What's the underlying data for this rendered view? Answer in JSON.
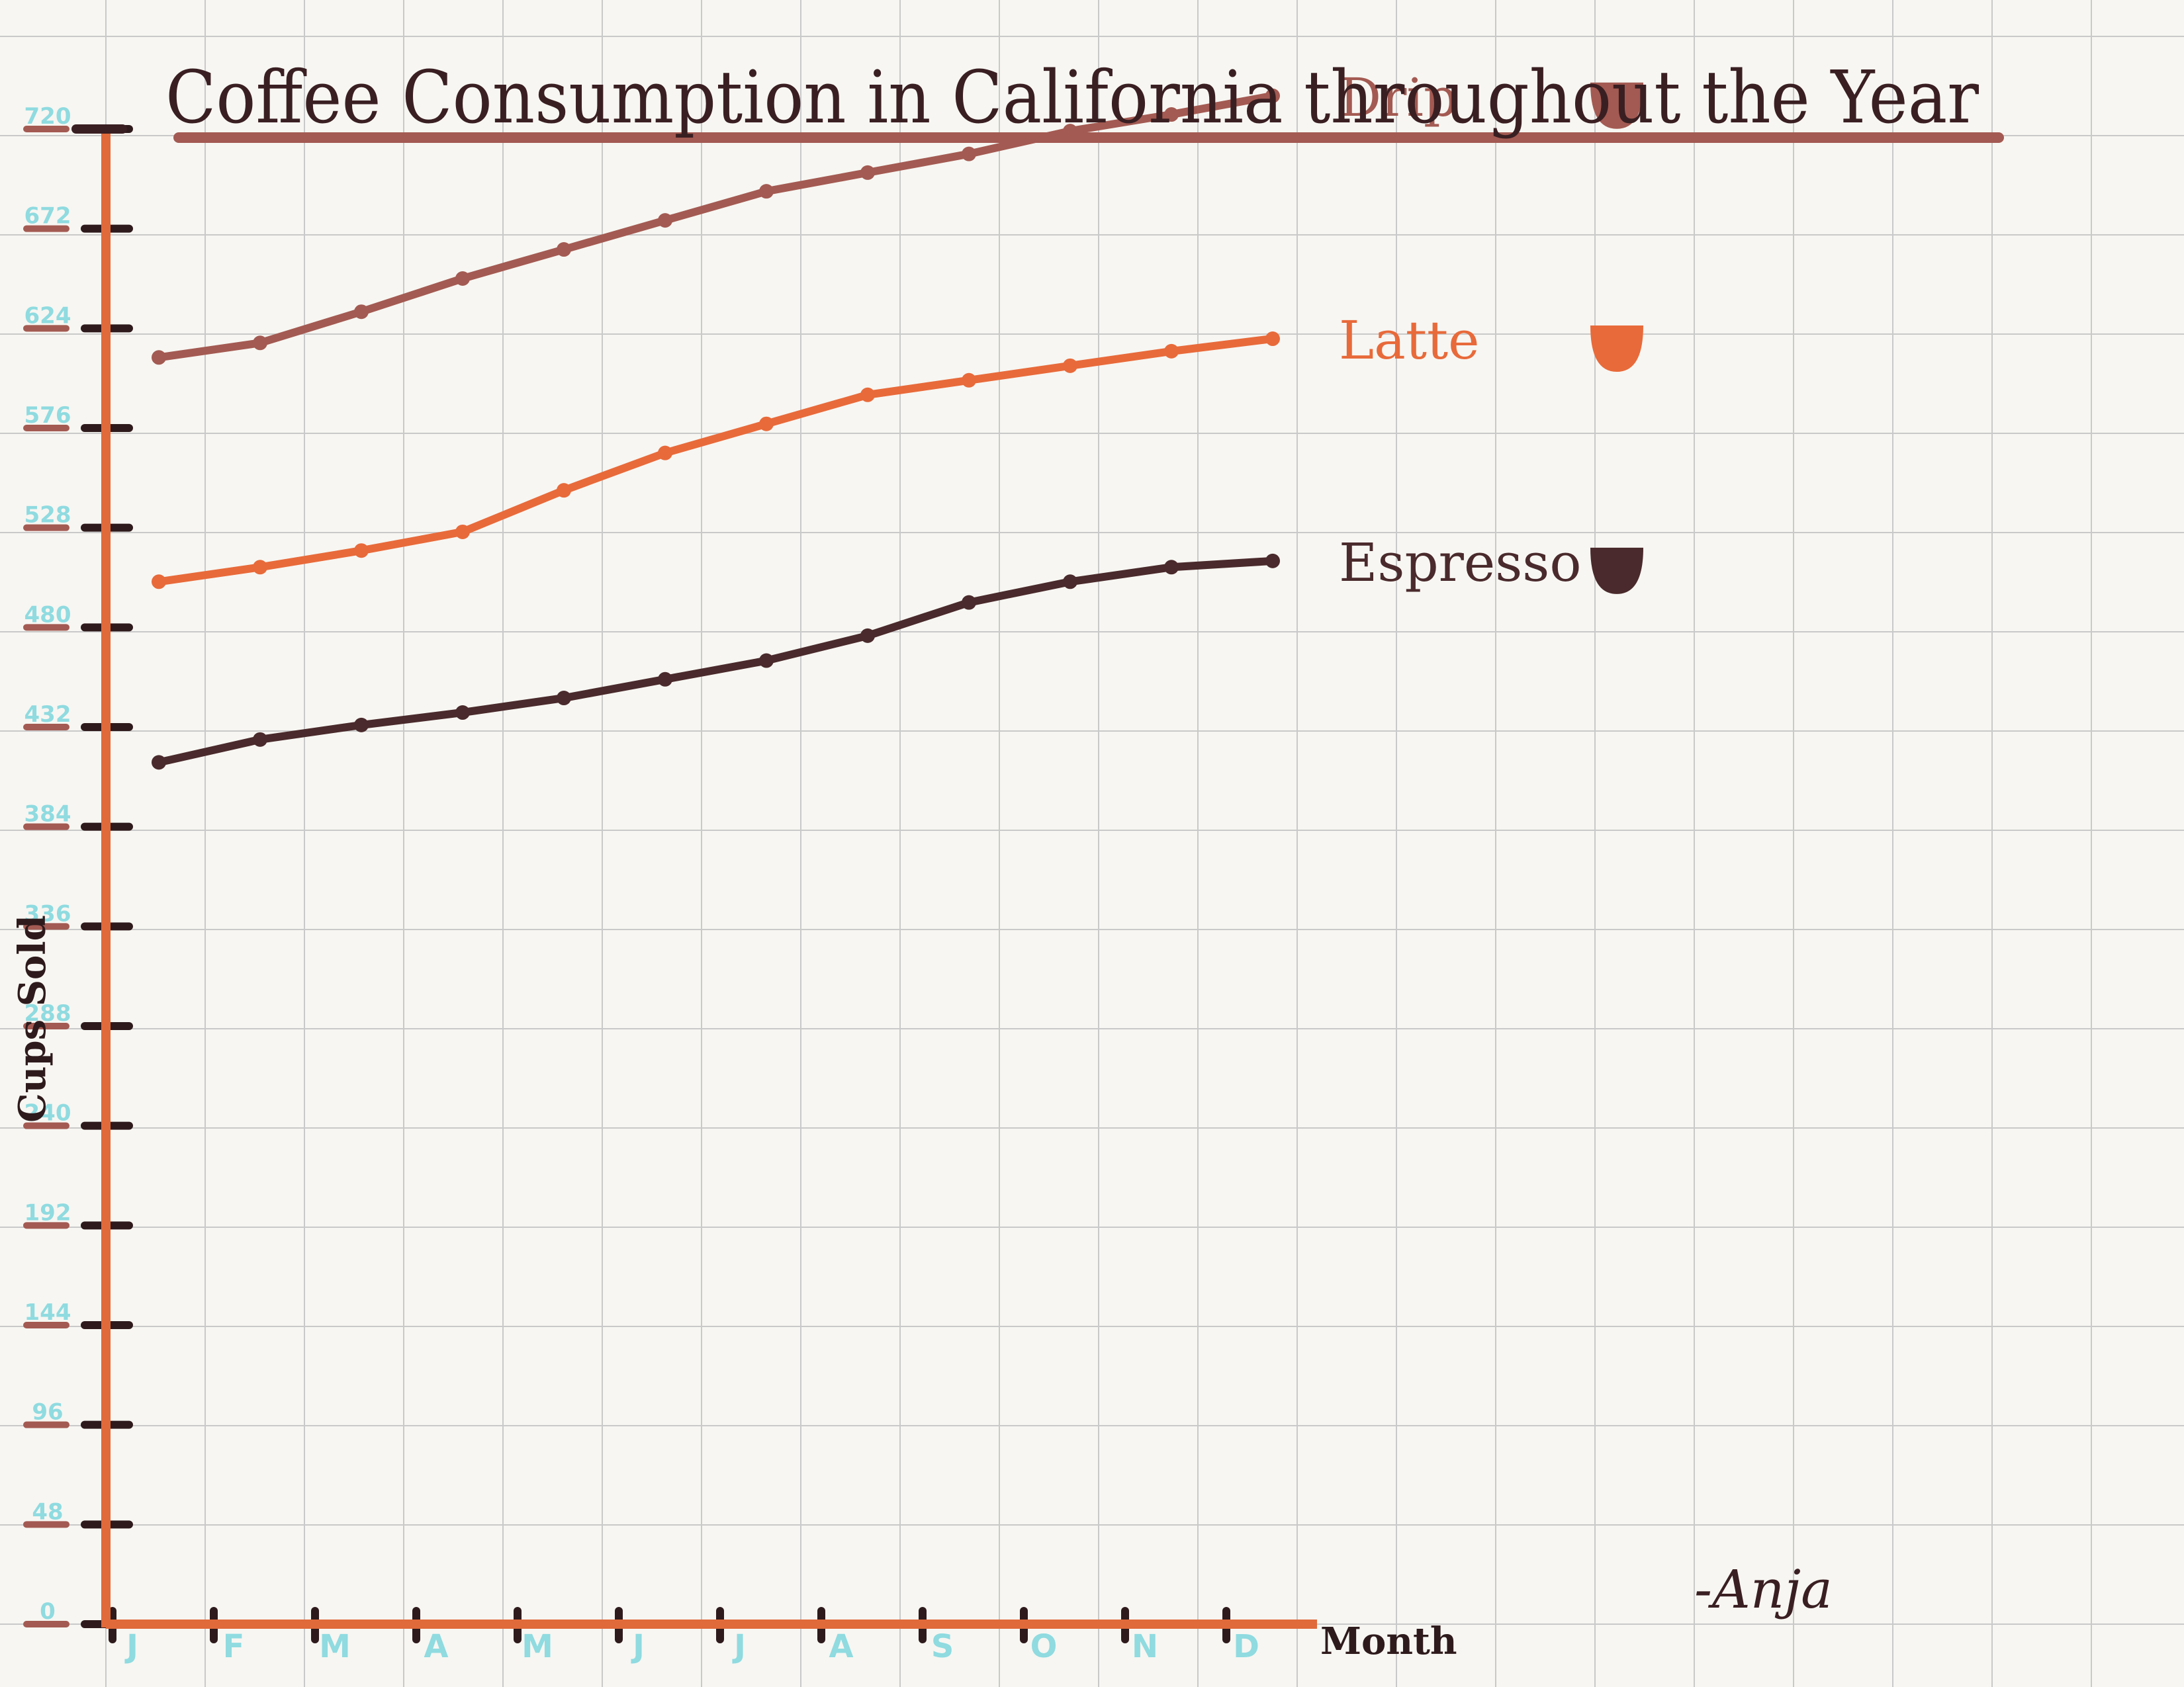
{
  "chart_data": {
    "type": "line",
    "title": "Coffee Consumption in California throughout the Year",
    "xlabel": "Month",
    "ylabel": "Cups Sold",
    "categories": [
      "J",
      "F",
      "M",
      "A",
      "M",
      "J",
      "J",
      "A",
      "S",
      "O",
      "N",
      "D"
    ],
    "yticks": [
      0,
      48,
      96,
      144,
      192,
      240,
      288,
      336,
      384,
      432,
      480,
      528,
      576,
      624,
      672,
      720
    ],
    "ylim": [
      0,
      720
    ],
    "grid": true,
    "legend": "right of line ends",
    "series": [
      {
        "name": "Drip",
        "color": "#a35a52",
        "values": [
          610,
          617,
          632,
          648,
          662,
          676,
          690,
          699,
          708,
          719,
          727,
          736
        ]
      },
      {
        "name": "Latte",
        "color": "#e86a3a",
        "values": [
          502,
          509,
          517,
          526,
          546,
          564,
          578,
          592,
          599,
          606,
          613,
          619
        ]
      },
      {
        "name": "Espresso",
        "color": "#4a2a2c",
        "values": [
          415,
          426,
          433,
          439,
          446,
          455,
          464,
          476,
          492,
          502,
          509,
          512
        ]
      }
    ],
    "signature": "-Anja"
  }
}
